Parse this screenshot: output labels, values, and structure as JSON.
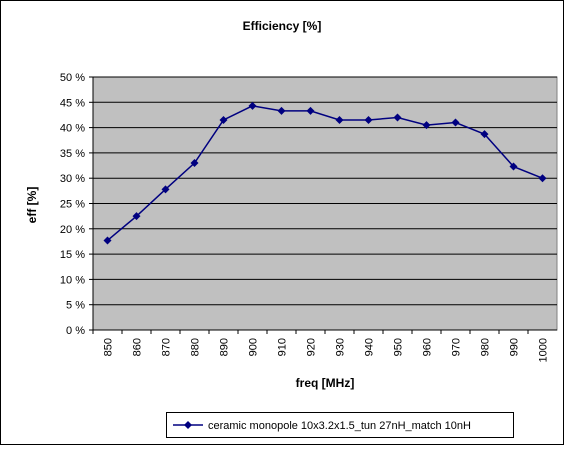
{
  "chart_data": {
    "type": "line",
    "title": "Efficiency [%]",
    "x_label": "freq [MHz]",
    "y_label": "eff [%]",
    "categories": [
      850,
      860,
      870,
      880,
      890,
      900,
      910,
      920,
      930,
      940,
      950,
      960,
      970,
      980,
      990,
      1000
    ],
    "series": [
      {
        "name": "ceramic monopole 10x3.2x1.5_tun 27nH_match 10nH",
        "color": "#000080",
        "values": [
          17.7,
          22.5,
          27.8,
          33,
          41.5,
          44.3,
          43.3,
          43.3,
          41.5,
          41.5,
          42,
          40.5,
          41,
          38.7,
          32.3,
          30
        ]
      }
    ],
    "ylim": [
      0,
      50
    ],
    "yticks": [
      {
        "value": 0,
        "label": "0 %"
      },
      {
        "value": 5,
        "label": "5 %"
      },
      {
        "value": 10,
        "label": "10 %"
      },
      {
        "value": 15,
        "label": "15 %"
      },
      {
        "value": 20,
        "label": "20 %"
      },
      {
        "value": 25,
        "label": "25 %"
      },
      {
        "value": 30,
        "label": "30 %"
      },
      {
        "value": 35,
        "label": "35 %"
      },
      {
        "value": 40,
        "label": "40 %"
      },
      {
        "value": 45,
        "label": "45 %"
      },
      {
        "value": 50,
        "label": "50 %"
      }
    ],
    "grid": true,
    "legend": "bottom"
  }
}
